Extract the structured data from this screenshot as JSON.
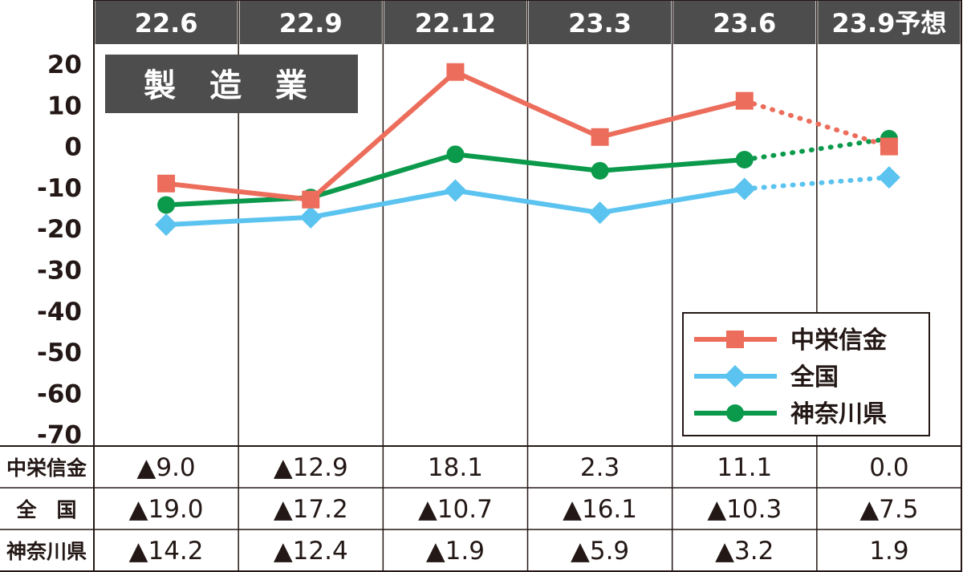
{
  "title": "製 造 業",
  "header_label_suffix": "予想",
  "chart_data": {
    "type": "line",
    "categories": [
      "22.6",
      "22.9",
      "22.12",
      "23.3",
      "23.6",
      "23.9予想"
    ],
    "forecast_index": 5,
    "ylim": [
      -70,
      20
    ],
    "yticks": [
      20,
      10,
      0,
      -10,
      -20,
      -30,
      -40,
      -50,
      -60,
      -70
    ],
    "series": [
      {
        "name": "中栄信金",
        "color": "#ec6d5b",
        "marker": "square",
        "values": [
          -9.0,
          -12.9,
          18.1,
          2.3,
          11.1,
          0.0
        ],
        "labels": [
          "▲9.0",
          "▲12.9",
          "18.1",
          "2.3",
          "11.1",
          "0.0"
        ]
      },
      {
        "name": "全国",
        "row_label": "全　国",
        "color": "#5bc3ef",
        "marker": "diamond",
        "values": [
          -19.0,
          -17.2,
          -10.7,
          -16.1,
          -10.3,
          -7.5
        ],
        "labels": [
          "▲19.0",
          "▲17.2",
          "▲10.7",
          "▲16.1",
          "▲10.3",
          "▲7.5"
        ]
      },
      {
        "name": "神奈川県",
        "color": "#0b9a4b",
        "marker": "circle",
        "values": [
          -14.2,
          -12.4,
          -1.9,
          -5.9,
          -3.2,
          1.9
        ],
        "labels": [
          "▲14.2",
          "▲12.4",
          "▲1.9",
          "▲5.9",
          "▲3.2",
          "1.9"
        ]
      }
    ],
    "legend_position": "bottom-right",
    "grid": false
  }
}
